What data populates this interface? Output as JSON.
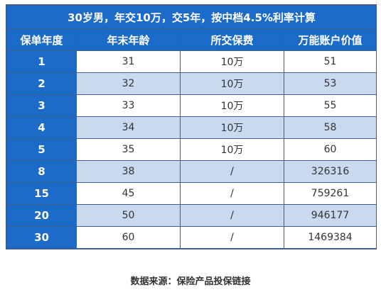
{
  "title": "30岁男，年交10万，交5年，按中档4.5%利率计算",
  "headers": [
    "保单年度",
    "年末年龄",
    "所交保费",
    "万能账户价值"
  ],
  "rows": [
    [
      "1",
      "31",
      "10万",
      "51"
    ],
    [
      "2",
      "32",
      "10万",
      "53"
    ],
    [
      "3",
      "33",
      "10万",
      "55"
    ],
    [
      "4",
      "34",
      "10万",
      "58"
    ],
    [
      "5",
      "35",
      "10万",
      "60"
    ],
    [
      "8",
      "38",
      "/",
      "326316"
    ],
    [
      "15",
      "45",
      "/",
      "759261"
    ],
    [
      "20",
      "50",
      "/",
      "946177"
    ],
    [
      "30",
      "60",
      "/",
      "1469384"
    ]
  ],
  "source": "数据来源：保险产品投保链接",
  "colors": {
    "header_bg": "#1d6bc9",
    "alt_row_bg": "#c9d9f0",
    "border": "#3d5f8f"
  }
}
